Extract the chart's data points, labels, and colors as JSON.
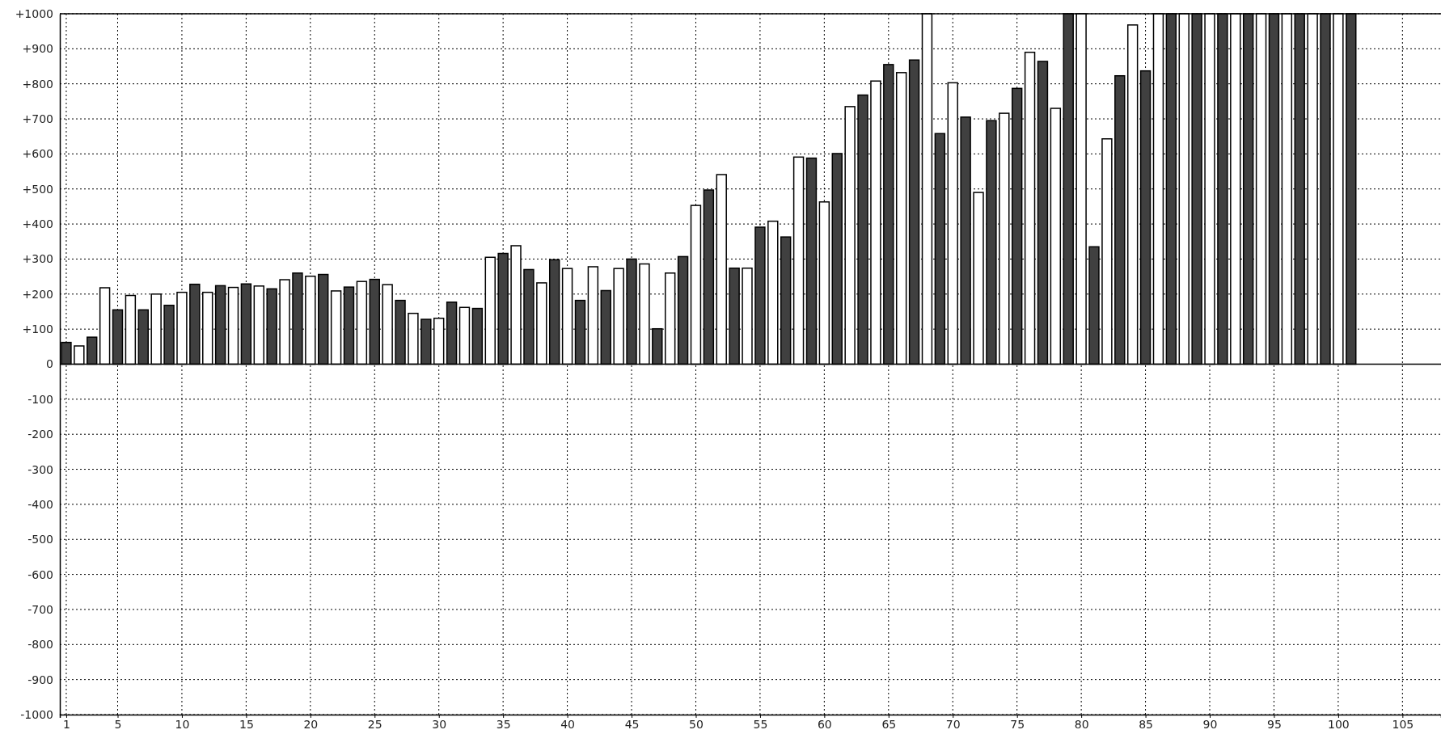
{
  "chart_data": {
    "type": "bar",
    "x": [
      1,
      2,
      3,
      4,
      5,
      6,
      7,
      8,
      9,
      10,
      11,
      12,
      13,
      14,
      15,
      16,
      17,
      18,
      19,
      20,
      21,
      22,
      23,
      24,
      25,
      26,
      27,
      28,
      29,
      30,
      31,
      32,
      33,
      34,
      35,
      36,
      37,
      38,
      39,
      40,
      41,
      42,
      43,
      44,
      45,
      46,
      47,
      48,
      49,
      50,
      51,
      52,
      53,
      54,
      55,
      56,
      57,
      58,
      59,
      60,
      61,
      62,
      63,
      64,
      65,
      66,
      67,
      68,
      69,
      70,
      71,
      72,
      73,
      74,
      75,
      76,
      77,
      78,
      79,
      80,
      81,
      82,
      83,
      84,
      85,
      86,
      87,
      88,
      89,
      90,
      91,
      92,
      93,
      94,
      95,
      96,
      97,
      98,
      99,
      100,
      101
    ],
    "values": [
      62,
      52,
      77,
      218,
      155,
      196,
      155,
      200,
      168,
      205,
      228,
      205,
      224,
      219,
      229,
      223,
      215,
      241,
      260,
      251,
      256,
      209,
      220,
      236,
      242,
      227,
      182,
      145,
      128,
      131,
      177,
      162,
      159,
      305,
      316,
      338,
      270,
      232,
      298,
      273,
      182,
      278,
      210,
      273,
      300,
      286,
      101,
      260,
      307,
      453,
      497,
      541,
      274,
      274,
      391,
      408,
      363,
      591,
      588,
      463,
      601,
      735,
      768,
      808,
      855,
      832,
      868,
      1000,
      658,
      803,
      705,
      490,
      695,
      716,
      787,
      890,
      864,
      730,
      1000,
      1000,
      335,
      643,
      823,
      968,
      837,
      1000,
      1000,
      1000,
      1000,
      1000,
      1000,
      1000,
      1000,
      1000,
      1000,
      1000,
      1000,
      1000,
      1000,
      1000,
      1000
    ],
    "colors": [
      "#404040",
      "#ffffff",
      "#404040",
      "#ffffff",
      "#404040",
      "#ffffff",
      "#404040",
      "#ffffff",
      "#404040",
      "#ffffff",
      "#404040",
      "#ffffff",
      "#404040",
      "#ffffff",
      "#404040",
      "#ffffff",
      "#404040",
      "#ffffff",
      "#404040",
      "#ffffff",
      "#404040",
      "#ffffff",
      "#404040",
      "#ffffff",
      "#404040",
      "#ffffff",
      "#404040",
      "#ffffff",
      "#404040",
      "#ffffff",
      "#404040",
      "#ffffff",
      "#404040",
      "#ffffff",
      "#404040",
      "#ffffff",
      "#404040",
      "#ffffff",
      "#404040",
      "#ffffff",
      "#404040",
      "#ffffff",
      "#404040",
      "#ffffff",
      "#404040",
      "#ffffff",
      "#404040",
      "#ffffff",
      "#404040",
      "#ffffff",
      "#404040",
      "#ffffff",
      "#404040",
      "#ffffff",
      "#404040",
      "#ffffff",
      "#404040",
      "#ffffff",
      "#404040",
      "#ffffff",
      "#404040",
      "#ffffff",
      "#404040",
      "#ffffff",
      "#404040",
      "#ffffff",
      "#404040",
      "#ffffff",
      "#404040",
      "#ffffff",
      "#404040",
      "#ffffff",
      "#404040",
      "#ffffff",
      "#404040",
      "#ffffff",
      "#404040",
      "#ffffff",
      "#404040",
      "#ffffff",
      "#404040",
      "#ffffff",
      "#404040",
      "#ffffff",
      "#404040",
      "#ffffff",
      "#404040",
      "#ffffff",
      "#404040",
      "#ffffff",
      "#404040",
      "#ffffff",
      "#404040",
      "#ffffff",
      "#404040",
      "#ffffff",
      "#404040",
      "#ffffff",
      "#404040",
      "#ffffff",
      "#404040"
    ],
    "xlim": [
      0.5,
      108
    ],
    "xticks": [
      1,
      5,
      10,
      15,
      20,
      25,
      30,
      35,
      40,
      45,
      50,
      55,
      60,
      65,
      70,
      75,
      80,
      85,
      90,
      95,
      100,
      105
    ],
    "ylim": [
      -1000,
      1000
    ],
    "yticks": [
      {
        "value": -1000,
        "label": "-1000"
      },
      {
        "value": -900,
        "label": "-900"
      },
      {
        "value": -800,
        "label": "-800"
      },
      {
        "value": -700,
        "label": "-700"
      },
      {
        "value": -600,
        "label": "-600"
      },
      {
        "value": -500,
        "label": "-500"
      },
      {
        "value": -400,
        "label": "-400"
      },
      {
        "value": -300,
        "label": "-300"
      },
      {
        "value": -200,
        "label": "-200"
      },
      {
        "value": -100,
        "label": "-100"
      },
      0,
      {
        "value": 100,
        "label": "+100"
      },
      {
        "value": 200,
        "label": "+200"
      },
      {
        "value": 300,
        "label": "+300"
      },
      {
        "value": 400,
        "label": "+400"
      },
      {
        "value": 500,
        "label": "+500"
      },
      {
        "value": 600,
        "label": "+600"
      },
      {
        "value": 700,
        "label": "+700"
      },
      {
        "value": 800,
        "label": "+800"
      },
      {
        "value": 900,
        "label": "+900"
      },
      {
        "value": 1000,
        "label": "+1000"
      }
    ],
    "grid": true
  }
}
